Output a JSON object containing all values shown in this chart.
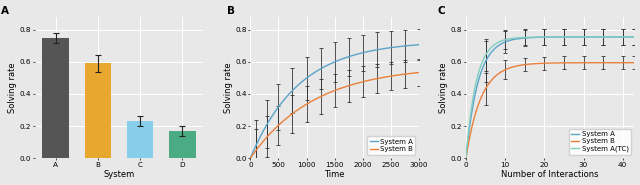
{
  "panel_A": {
    "categories": [
      "A",
      "B",
      "C",
      "D"
    ],
    "values": [
      0.75,
      0.59,
      0.23,
      0.17
    ],
    "errors": [
      0.03,
      0.055,
      0.03,
      0.03
    ],
    "colors": [
      "#555555",
      "#E8A830",
      "#87CEEB",
      "#4BAB82"
    ],
    "xlabel": "System",
    "ylabel": "Solving rate",
    "ylim": [
      0.0,
      0.88
    ],
    "yticks": [
      0.0,
      0.2,
      0.4,
      0.6,
      0.8
    ]
  },
  "panel_B": {
    "xlabel": "Time",
    "ylabel": "Solving rate",
    "ylim": [
      0.0,
      0.88
    ],
    "yticks": [
      0.0,
      0.2,
      0.4,
      0.6,
      0.8
    ],
    "xticks": [
      0,
      500,
      1000,
      1500,
      2000,
      2500,
      3000
    ],
    "xlim": [
      0,
      3000
    ],
    "color_A": "#5BA3C9",
    "color_B": "#E8803A",
    "label_A": "System A",
    "label_B": "System B",
    "asymp_A": 0.73,
    "asymp_B": 0.575,
    "rate_A": 0.00115,
    "rate_B": 0.00088,
    "eb_times": [
      100,
      300,
      500,
      750,
      1000,
      1250,
      1500,
      1750,
      2000,
      2250,
      2500,
      2750,
      3000
    ],
    "eb_base_A": 0.12,
    "eb_base_B": 0.1,
    "eb_decay": 0.00025
  },
  "panel_C": {
    "xlabel": "Number of Interactions",
    "ylabel": "Solving rate",
    "ylim": [
      0.0,
      0.88
    ],
    "yticks": [
      0.0,
      0.2,
      0.4,
      0.6,
      0.8
    ],
    "xticks": [
      0,
      10,
      20,
      30,
      40
    ],
    "xlim": [
      0,
      43
    ],
    "color_A": "#5BA3C9",
    "color_B": "#E8803A",
    "color_TC": "#80CEC0",
    "label_A": "System A",
    "label_B": "System B",
    "label_TC": "System A(TC)",
    "asymp_A": 0.755,
    "asymp_B": 0.595,
    "asymp_TC": 0.755,
    "rate_A": 0.32,
    "rate_B": 0.26,
    "rate_TC": 0.38,
    "eb_ns": [
      5,
      10,
      15,
      20,
      25,
      30,
      35,
      40,
      43
    ],
    "eb_A_vals": [
      0.13,
      0.07,
      0.05,
      0.05,
      0.05,
      0.05,
      0.05,
      0.05,
      0.05
    ],
    "eb_B_vals": [
      0.1,
      0.06,
      0.04,
      0.04,
      0.04,
      0.04,
      0.04,
      0.04,
      0.04
    ],
    "eb_TC_vals": [
      0.1,
      0.06,
      0.05,
      0.05,
      0.05,
      0.05,
      0.05,
      0.05,
      0.05
    ]
  },
  "background_color": "#E8E8E8",
  "grid_color": "#FFFFFF",
  "fig_facecolor": "#E8E8E8",
  "label_fontsize": 6.0,
  "tick_fontsize": 5.2,
  "panel_label_fontsize": 7.5,
  "legend_fontsize": 5.0
}
